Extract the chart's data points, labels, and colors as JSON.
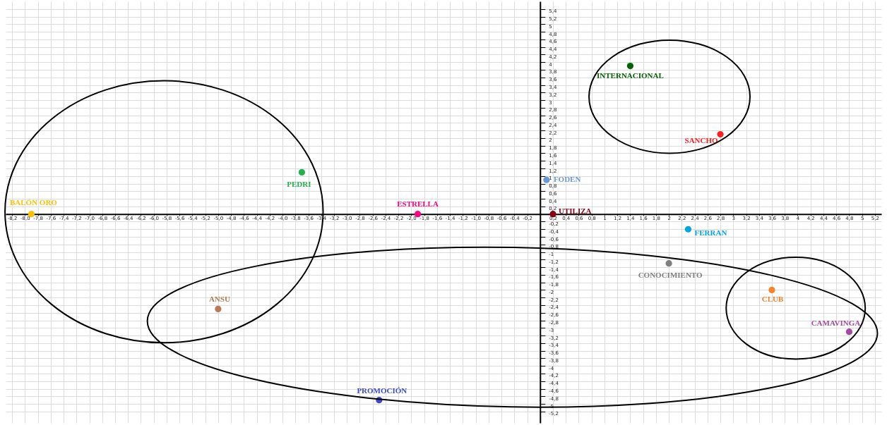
{
  "chart_data": {
    "type": "scatter",
    "marker": "circle",
    "grid": true,
    "legend": false,
    "xlim": [
      -8.3,
      5.3
    ],
    "ylim": [
      -5.5,
      5.6
    ],
    "xticks": [
      {
        "value": -8.2,
        "label": "-8,2"
      },
      {
        "value": -8,
        "label": "-8,0"
      },
      {
        "value": -7.8,
        "label": "-7,8"
      },
      {
        "value": -7.6,
        "label": "-7,6"
      },
      {
        "value": -7.4,
        "label": "-7,4"
      },
      {
        "value": -7.2,
        "label": "-7,2"
      },
      {
        "value": -7,
        "label": "-7,0"
      },
      {
        "value": -6.8,
        "label": "-6,8"
      },
      {
        "value": -6.6,
        "label": "-6,6"
      },
      {
        "value": -6.4,
        "label": "-6,4"
      },
      {
        "value": -6.2,
        "label": "-6,2"
      },
      {
        "value": -6,
        "label": "-6,0"
      },
      {
        "value": -5.8,
        "label": "-5,8"
      },
      {
        "value": -5.6,
        "label": "-5,6"
      },
      {
        "value": -5.4,
        "label": "-5,4"
      },
      {
        "value": -5.2,
        "label": "-5,2"
      },
      {
        "value": -5,
        "label": "-5,0"
      },
      {
        "value": -4.8,
        "label": "-4,8"
      },
      {
        "value": -4.6,
        "label": "-4,6"
      },
      {
        "value": -4.4,
        "label": "-4,4"
      },
      {
        "value": -4.2,
        "label": "-4,2"
      },
      {
        "value": -4,
        "label": "-4,0"
      },
      {
        "value": -3.8,
        "label": "-3,8"
      },
      {
        "value": -3.6,
        "label": "-3,6"
      },
      {
        "value": -3.4,
        "label": "-3,4"
      },
      {
        "value": -3.2,
        "label": "-3,2"
      },
      {
        "value": -3,
        "label": "-3,0"
      },
      {
        "value": -2.8,
        "label": "-2,8"
      },
      {
        "value": -2.6,
        "label": "-2,6"
      },
      {
        "value": -2.4,
        "label": "-2,4"
      },
      {
        "value": -2.2,
        "label": "-2,2"
      },
      {
        "value": -2,
        "label": "-2,0"
      },
      {
        "value": -1.8,
        "label": "-1,8"
      },
      {
        "value": -1.6,
        "label": "-1,6"
      },
      {
        "value": -1.4,
        "label": "-1,4"
      },
      {
        "value": -1.2,
        "label": "-1,2"
      },
      {
        "value": -1,
        "label": "-1,0"
      },
      {
        "value": -0.8,
        "label": "-0,8"
      },
      {
        "value": -0.6,
        "label": "-0,6"
      },
      {
        "value": -0.4,
        "label": "-0,4"
      },
      {
        "value": -0.2,
        "label": "-0,2"
      },
      {
        "value": 0,
        "label": null
      },
      {
        "value": 0.2,
        "label": "0,2"
      },
      {
        "value": 0.4,
        "label": "0,4"
      },
      {
        "value": 0.6,
        "label": "0,6"
      },
      {
        "value": 0.8,
        "label": "0,8"
      },
      1,
      {
        "value": 1.2,
        "label": "1,2"
      },
      {
        "value": 1.4,
        "label": "1,4"
      },
      {
        "value": 1.6,
        "label": "1,6"
      },
      {
        "value": 1.8,
        "label": "1,8"
      },
      2,
      {
        "value": 2.2,
        "label": "2,2"
      },
      {
        "value": 2.4,
        "label": "2,4"
      },
      {
        "value": 2.6,
        "label": "2,6"
      },
      {
        "value": 2.8,
        "label": "2,8"
      },
      3,
      {
        "value": 3.2,
        "label": "3,2"
      },
      {
        "value": 3.4,
        "label": "3,4"
      },
      {
        "value": 3.6,
        "label": "3,6"
      },
      {
        "value": 3.8,
        "label": "3,8"
      },
      4,
      {
        "value": 4.2,
        "label": "4,2"
      },
      {
        "value": 4.4,
        "label": "4,4"
      },
      {
        "value": 4.6,
        "label": "4,6"
      },
      {
        "value": 4.8,
        "label": "4,8"
      },
      5,
      {
        "value": 5.2,
        "label": "5,2"
      }
    ],
    "yticks": [
      {
        "value": 5.4,
        "label": "5,4"
      },
      {
        "value": 5.2,
        "label": "5,2"
      },
      5,
      {
        "value": 4.8,
        "label": "4,8"
      },
      {
        "value": 4.6,
        "label": "4,6"
      },
      {
        "value": 4.4,
        "label": "4,4"
      },
      {
        "value": 4.2,
        "label": "4,2"
      },
      4,
      {
        "value": 3.8,
        "label": "3,8"
      },
      {
        "value": 3.6,
        "label": "3,6"
      },
      {
        "value": 3.4,
        "label": "3,4"
      },
      {
        "value": 3.2,
        "label": "3,2"
      },
      3,
      {
        "value": 2.8,
        "label": "2,8"
      },
      {
        "value": 2.6,
        "label": "2,6"
      },
      {
        "value": 2.4,
        "label": "2,4"
      },
      {
        "value": 2.2,
        "label": "2,2"
      },
      2,
      {
        "value": 1.8,
        "label": "1,8"
      },
      {
        "value": 1.6,
        "label": "1,6"
      },
      {
        "value": 1.4,
        "label": "1,4"
      },
      {
        "value": 1.2,
        "label": "1,2"
      },
      1,
      {
        "value": 0.8,
        "label": "0,8"
      },
      {
        "value": 0.6,
        "label": "0,6"
      },
      {
        "value": 0.4,
        "label": "0,4"
      },
      {
        "value": 0.2,
        "label": "0,2"
      },
      {
        "value": 0,
        "label": null
      },
      {
        "value": -0.2,
        "label": "-0,2"
      },
      {
        "value": -0.4,
        "label": "-0,4"
      },
      {
        "value": -0.6,
        "label": "-0,6"
      },
      {
        "value": -0.8,
        "label": "-0,8"
      },
      -1,
      {
        "value": -1.2,
        "label": "-1,2"
      },
      {
        "value": -1.4,
        "label": "-1,4"
      },
      {
        "value": -1.6,
        "label": "-1,6"
      },
      {
        "value": -1.8,
        "label": "-1,8"
      },
      -2,
      {
        "value": -2.2,
        "label": "-2,2"
      },
      {
        "value": -2.4,
        "label": "-2,4"
      },
      {
        "value": -2.6,
        "label": "-2,6"
      },
      {
        "value": -2.8,
        "label": "-2,8"
      },
      -3,
      {
        "value": -3.2,
        "label": "-3,2"
      },
      {
        "value": -3.4,
        "label": "-3,4"
      },
      {
        "value": -3.6,
        "label": "-3,6"
      },
      {
        "value": -3.8,
        "label": "-3,8"
      },
      -4,
      {
        "value": -4.2,
        "label": "-4,2"
      },
      {
        "value": -4.4,
        "label": "-4,4"
      },
      {
        "value": -4.6,
        "label": "-4,6"
      },
      {
        "value": -4.8,
        "label": "-4,8"
      },
      -5,
      {
        "value": -5.2,
        "label": "-5,2"
      }
    ],
    "series": [
      {
        "name": "BALÓN ORO",
        "color": "#ffc000",
        "x": [
          -7.9
        ],
        "values": [
          0
        ]
      },
      {
        "name": "PEDRI",
        "color": "#22b14c",
        "x": [
          -3.7
        ],
        "values": [
          1.1
        ]
      },
      {
        "name": "ANSU",
        "color": "#b97a57",
        "x": [
          -5.0
        ],
        "values": [
          -2.5
        ]
      },
      {
        "name": "ESTRELLA",
        "color": "#ff0080",
        "x": [
          -1.9
        ],
        "values": [
          0
        ]
      },
      {
        "name": "PROMOCIÓN",
        "color": "#3f48cc",
        "x": [
          -2.5
        ],
        "values": [
          -4.9
        ]
      },
      {
        "name": "FODEN",
        "color": "#6b97d2",
        "x": [
          0.1
        ],
        "values": [
          0.9
        ]
      },
      {
        "name": "UTILIZA",
        "color": "#880015",
        "x": [
          0.2
        ],
        "values": [
          0
        ]
      },
      {
        "name": "INTERNACIONAL",
        "color": "#006400",
        "x": [
          1.4
        ],
        "values": [
          3.9
        ]
      },
      {
        "name": "SANCHO",
        "color": "#ff2020",
        "x": [
          2.8
        ],
        "values": [
          2.1
        ]
      },
      {
        "name": "FERRAN",
        "color": "#00a2e8",
        "x": [
          2.3
        ],
        "values": [
          -0.4
        ]
      },
      {
        "name": "CONOCIMIENTO",
        "color": "#7f7f7f",
        "x": [
          2.0
        ],
        "values": [
          -1.3
        ]
      },
      {
        "name": "CLUB",
        "color": "#ff7f27",
        "x": [
          3.6
        ],
        "values": [
          -2.0
        ]
      },
      {
        "name": "CAMAVINGA",
        "color": "#a349a4",
        "x": [
          4.8
        ],
        "values": [
          -3.1
        ]
      }
    ]
  }
}
